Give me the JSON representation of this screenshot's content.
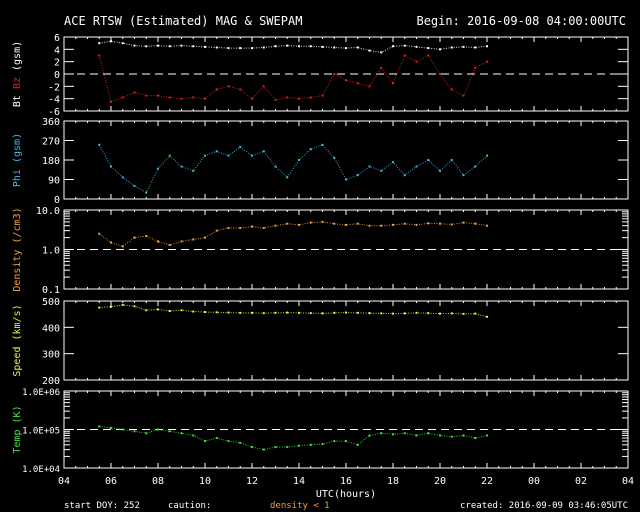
{
  "chart_data": {
    "type": "scatter",
    "title": "ACE RTSW (Estimated) MAG & SWEPAM",
    "begin": "Begin: 2016-09-08 04:00:00UTC",
    "xlabel": "UTC(hours)",
    "x_range_hours": [
      4,
      28
    ],
    "x_tick_labels": [
      "04",
      "06",
      "08",
      "10",
      "12",
      "14",
      "16",
      "18",
      "20",
      "22",
      "00",
      "02",
      "04"
    ],
    "footer": {
      "start_doy": "start DOY: 252",
      "caution": "caution:",
      "caution_note": "density < 1",
      "created": "created: 2016-09-09 03:46:05UTC"
    },
    "colors": {
      "bt": "#ffffff",
      "bz": "#e02020",
      "phi": "#40b8e0",
      "density": "#f0a040",
      "speed": "#f0f040",
      "temp": "#40e040"
    },
    "x": [
      5.5,
      6,
      6.5,
      7,
      7.5,
      8,
      8.5,
      9,
      9.5,
      10,
      10.5,
      11,
      11.5,
      12,
      12.5,
      13,
      13.5,
      14,
      14.5,
      15,
      15.5,
      16,
      16.5,
      17,
      17.5,
      18,
      18.5,
      19,
      19.5,
      20,
      20.5,
      21,
      21.5,
      22
    ],
    "panels": [
      {
        "id": "mag",
        "ylabel_parts": [
          "Bt",
          "Bz",
          "(gsm)"
        ],
        "scale": "linear",
        "ylim": [
          -6,
          6
        ],
        "tick_labels": [
          "6",
          "4",
          "2",
          "0",
          "-2",
          "-4",
          "-6"
        ],
        "tick_values": [
          6,
          4,
          2,
          0,
          -2,
          -4,
          -6
        ],
        "dashed_at": 0,
        "series": [
          {
            "name": "Bt",
            "color_key": "bt",
            "values": [
              5,
              5.3,
              5,
              4.6,
              4.5,
              4.6,
              4.5,
              4.6,
              4.5,
              4.4,
              4.3,
              4.2,
              4.2,
              4.2,
              4.3,
              4.5,
              4.6,
              4.5,
              4.5,
              4.4,
              4.3,
              4.2,
              4.3,
              3.8,
              3.5,
              4.5,
              4.6,
              4.4,
              4.2,
              4.0,
              4.3,
              4.4,
              4.3,
              4.5
            ]
          },
          {
            "name": "Bz",
            "color_key": "bz",
            "values": [
              3,
              -4.5,
              -3.8,
              -3,
              -3.5,
              -3.5,
              -3.8,
              -4,
              -3.8,
              -4,
              -2.5,
              -2,
              -2.5,
              -4,
              -2,
              -4.2,
              -3.8,
              -4,
              -3.8,
              -3.5,
              0,
              -1,
              -1.5,
              -2,
              1,
              -1.5,
              3,
              2,
              3,
              0,
              -2.5,
              -3.5,
              1,
              2
            ]
          }
        ]
      },
      {
        "id": "phi",
        "ylabel_parts": [
          "Phi (gsm)"
        ],
        "scale": "linear",
        "ylim": [
          0,
          360
        ],
        "tick_labels": [
          "360",
          "270",
          "180",
          "90",
          "0"
        ],
        "tick_values": [
          360,
          270,
          180,
          90,
          0
        ],
        "series": [
          {
            "name": "Phi",
            "color_key": "phi",
            "values": [
              250,
              150,
              100,
              60,
              30,
              140,
              200,
              150,
              130,
              200,
              220,
              200,
              240,
              200,
              220,
              150,
              100,
              180,
              230,
              250,
              190,
              90,
              110,
              150,
              130,
              170,
              110,
              150,
              180,
              130,
              180,
              110,
              150,
              200
            ]
          }
        ]
      },
      {
        "id": "density",
        "ylabel_parts": [
          "Density (/cm3)"
        ],
        "scale": "log",
        "ylim": [
          0.1,
          10
        ],
        "tick_labels": [
          "10.0",
          "1.0",
          "0.1"
        ],
        "tick_values": [
          10,
          1,
          0.1
        ],
        "dashed_at": 1,
        "series": [
          {
            "name": "Density",
            "color_key": "density",
            "values": [
              2.5,
              1.5,
              1.2,
              2,
              2.2,
              1.6,
              1.3,
              1.6,
              1.8,
              2,
              3,
              3.5,
              3.5,
              3.8,
              3.5,
              4,
              4.5,
              4.2,
              4.8,
              5,
              4.5,
              4.2,
              4.5,
              4,
              4,
              4.2,
              4.5,
              4.2,
              4.6,
              4.5,
              4.3,
              4.8,
              4.5,
              4.0
            ]
          }
        ]
      },
      {
        "id": "speed",
        "ylabel_parts": [
          "Speed (km/s)"
        ],
        "scale": "linear",
        "ylim": [
          200,
          500
        ],
        "tick_labels": [
          "500",
          "400",
          "300",
          "200"
        ],
        "tick_values": [
          500,
          400,
          300,
          200
        ],
        "series": [
          {
            "name": "Speed",
            "color_key": "speed",
            "values": [
              475,
              478,
              485,
              480,
              465,
              468,
              462,
              465,
              460,
              458,
              457,
              456,
              455,
              455,
              454,
              455,
              456,
              455,
              454,
              453,
              455,
              456,
              455,
              454,
              453,
              452,
              453,
              455,
              454,
              452,
              453,
              451,
              452,
              440
            ]
          }
        ]
      },
      {
        "id": "temp",
        "ylabel_parts": [
          "Temp (K)"
        ],
        "scale": "log",
        "ylim": [
          10000,
          1000000
        ],
        "tick_labels": [
          "1.0E+06",
          "1.0E+05",
          "1.0E+04"
        ],
        "tick_values": [
          1000000,
          100000,
          10000
        ],
        "dashed_at": 100000,
        "series": [
          {
            "name": "Temp",
            "color_key": "temp",
            "values": [
              120000,
              110000,
              100000,
              90000,
              80000,
              100000,
              90000,
              80000,
              70000,
              50000,
              60000,
              50000,
              45000,
              35000,
              30000,
              35000,
              35000,
              38000,
              40000,
              42000,
              50000,
              50000,
              40000,
              70000,
              80000,
              75000,
              80000,
              70000,
              80000,
              70000,
              65000,
              70000,
              60000,
              70000
            ]
          }
        ]
      }
    ]
  }
}
